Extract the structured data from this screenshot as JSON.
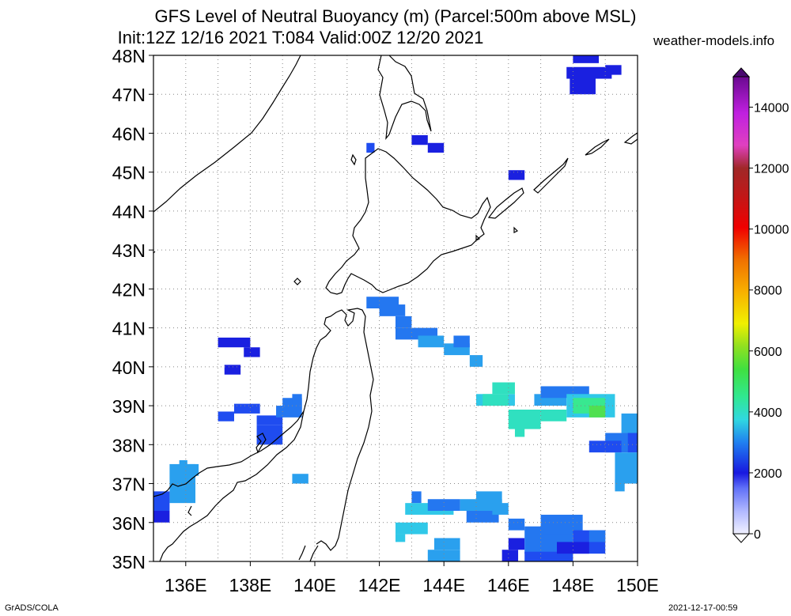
{
  "title": {
    "line1": "GFS Level of Neutral Buoyancy (m) (Parcel:500m above MSL)",
    "line2": "Init:12Z 12/16 2021 T:084 Valid:00Z 12/20 2021",
    "site": "weather-models.info"
  },
  "footer": {
    "left": "GrADS/COLA",
    "right": "2021-12-17-00:59"
  },
  "map": {
    "lon_range": [
      135,
      150
    ],
    "lat_range": [
      35,
      48
    ],
    "lat_labels": [
      "35N",
      "36N",
      "37N",
      "38N",
      "39N",
      "40N",
      "41N",
      "42N",
      "43N",
      "44N",
      "45N",
      "46N",
      "47N",
      "48N"
    ],
    "lon_labels": [
      "136E",
      "138E",
      "140E",
      "142E",
      "144E",
      "146E",
      "148E",
      "150E"
    ],
    "grid": "dotted"
  },
  "colorbar": {
    "labels": [
      "0",
      "2000",
      "4000",
      "6000",
      "8000",
      "10000",
      "12000",
      "14000"
    ],
    "range": [
      0,
      15000
    ]
  },
  "colors": {
    "c1000": "#1a20e0",
    "c1500": "#1f4cf0",
    "c2000": "#2477f0",
    "c2500": "#2aa0ee",
    "c3000": "#30c8e8",
    "c3500": "#30e0c0",
    "c4000": "#38e890",
    "c5000": "#50e050"
  }
}
